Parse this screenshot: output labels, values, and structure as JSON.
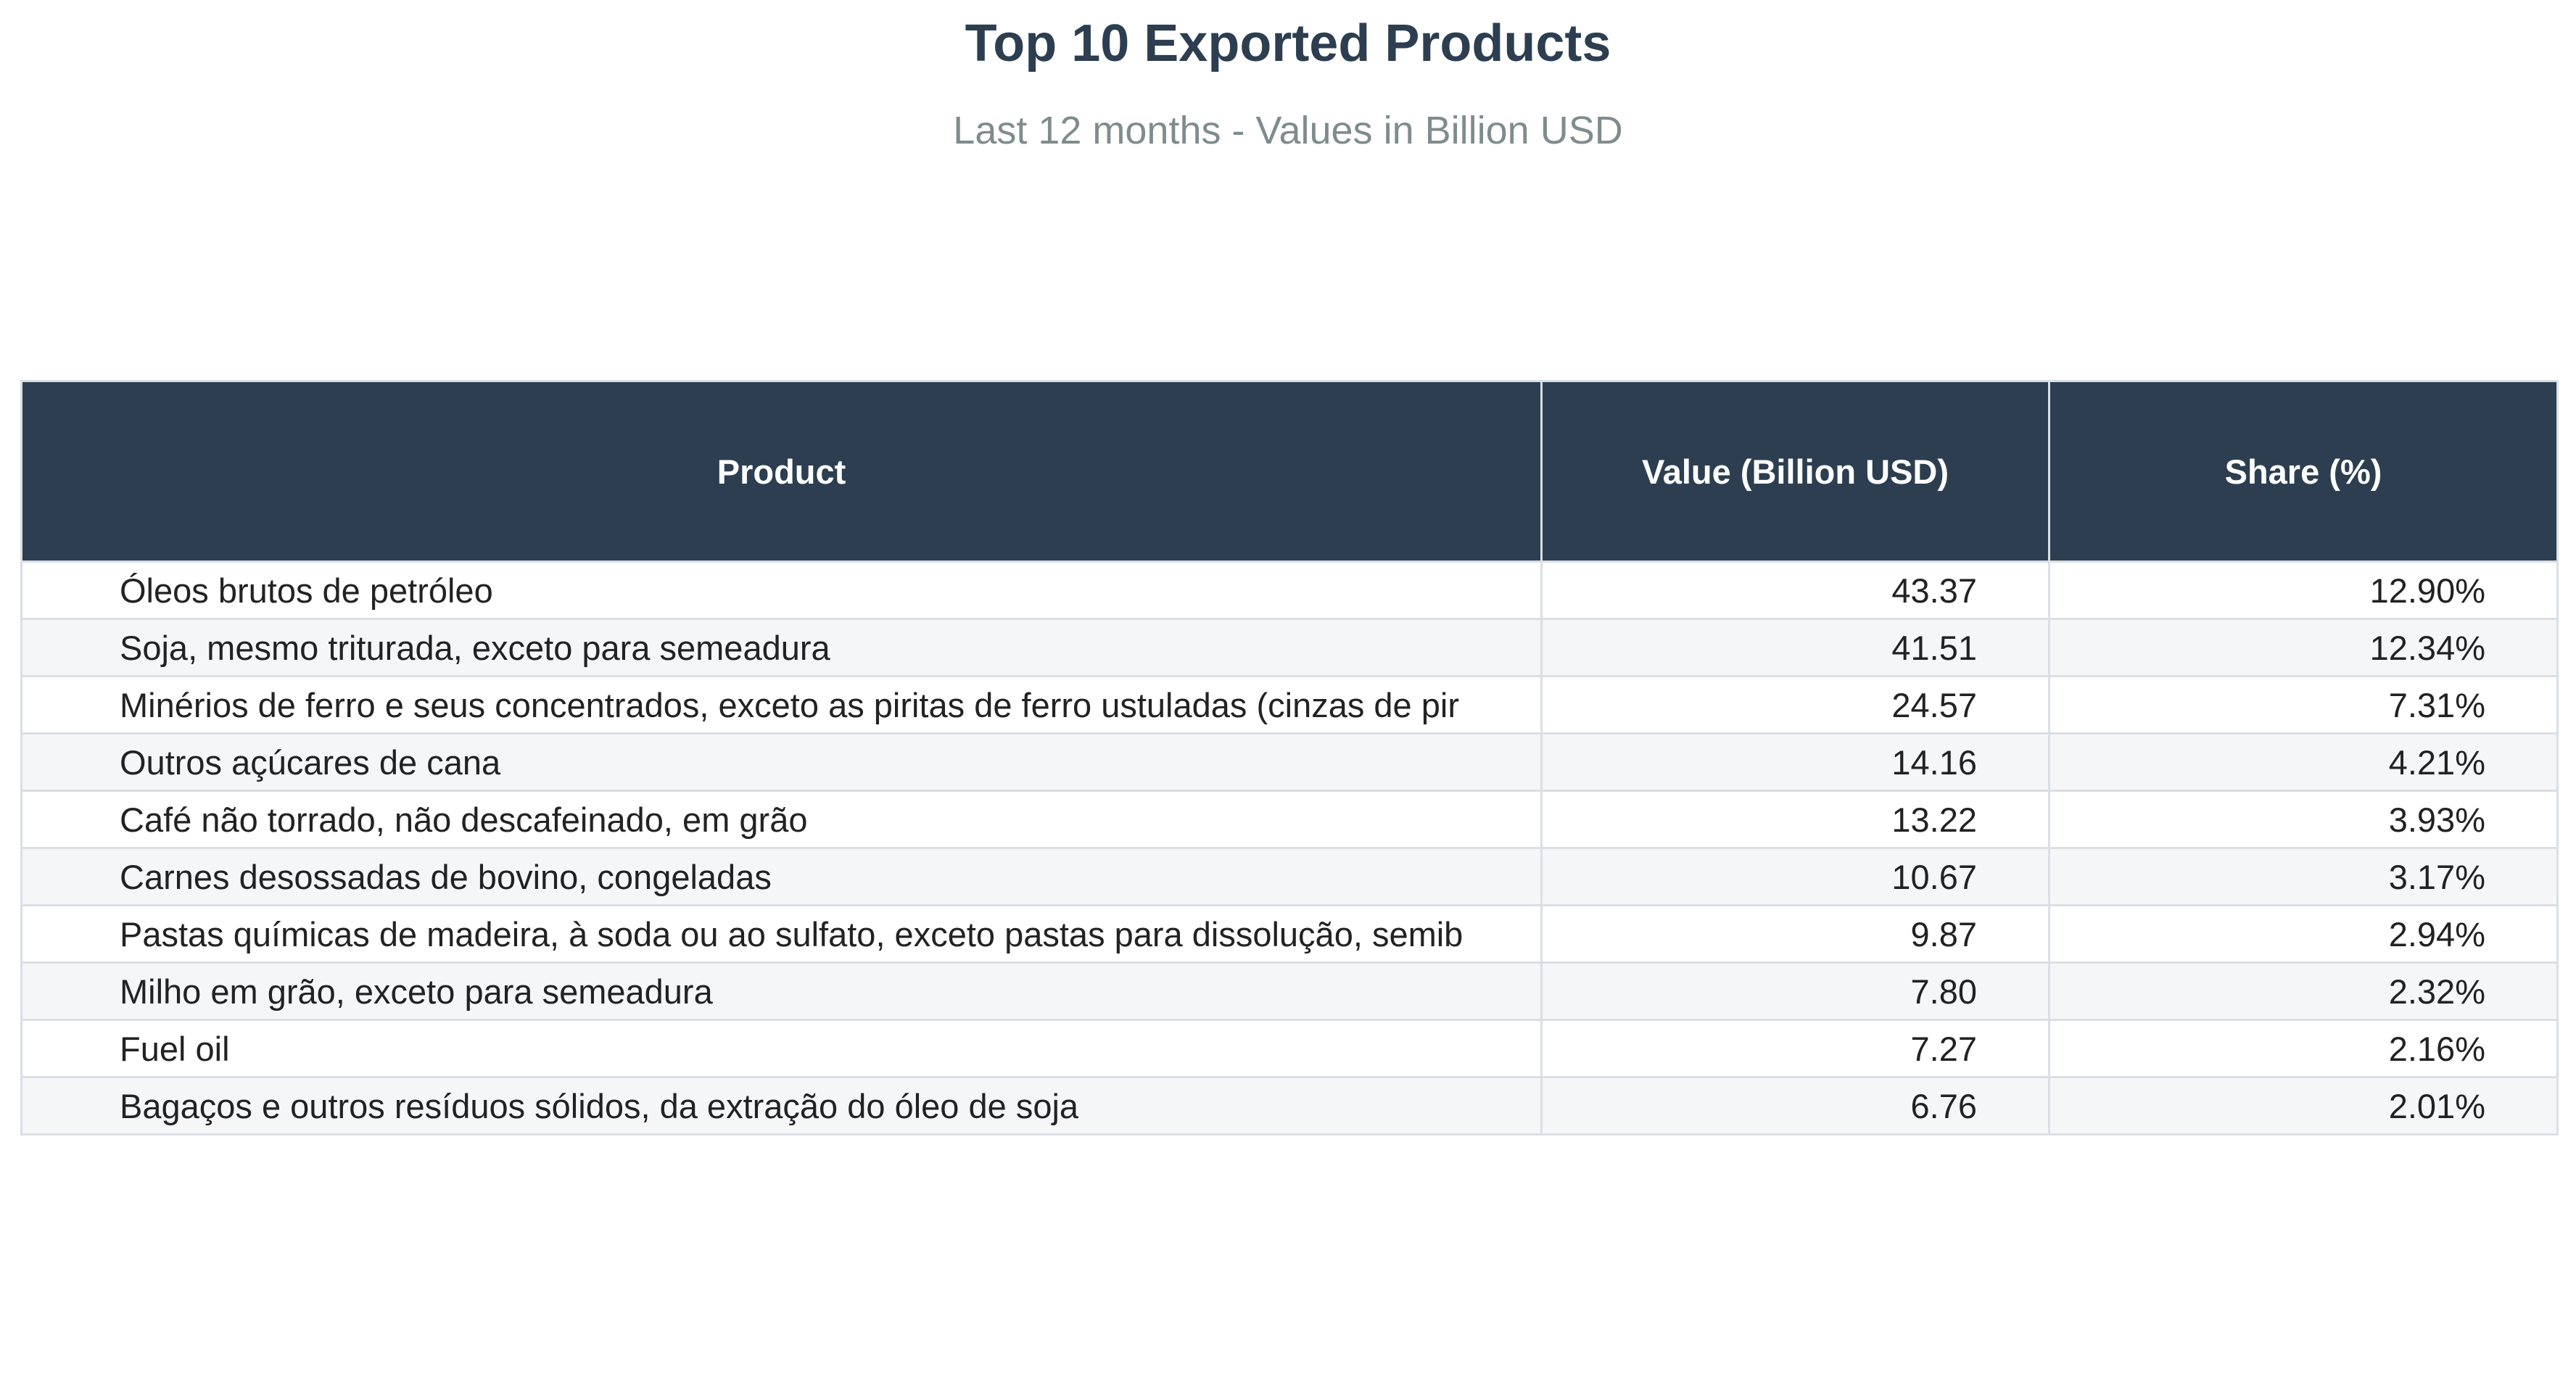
{
  "chart_data": {
    "type": "table",
    "title": "Top 10 Exported Products",
    "subtitle": "Last 12 months - Values in Billion USD",
    "columns": [
      "Product",
      "Value (Billion USD)",
      "Share (%)"
    ],
    "rows": [
      {
        "product": "Óleos brutos de petróleo",
        "value": "43.37",
        "share": "12.90%"
      },
      {
        "product": "Soja, mesmo triturada, exceto para semeadura",
        "value": "41.51",
        "share": "12.34%"
      },
      {
        "product": "Minérios de ferro e seus concentrados, exceto as piritas de ferro ustuladas (cinzas de pir",
        "value": "24.57",
        "share": "7.31%"
      },
      {
        "product": "Outros açúcares de cana",
        "value": "14.16",
        "share": "4.21%"
      },
      {
        "product": "Café não torrado, não descafeinado, em grão",
        "value": "13.22",
        "share": "3.93%"
      },
      {
        "product": "Carnes desossadas de bovino, congeladas",
        "value": "10.67",
        "share": "3.17%"
      },
      {
        "product": "Pastas químicas de madeira, à soda ou ao sulfato, exceto pastas para dissolução, semib",
        "value": "9.87",
        "share": "2.94%"
      },
      {
        "product": "Milho em grão, exceto para semeadura",
        "value": "7.80",
        "share": "2.32%"
      },
      {
        "product": "Fuel oil",
        "value": "7.27",
        "share": "2.16%"
      },
      {
        "product": "Bagaços e outros resíduos sólidos, da extração do óleo de soja",
        "value": "6.76",
        "share": "2.01%"
      }
    ]
  },
  "colors": {
    "header_bg": "#2c3e50",
    "header_text": "#ffffff",
    "title_text": "#2c3e50",
    "subtitle_text": "#7f8c8d",
    "row_alt_bg": "#f5f6f8",
    "grid": "#dadfe4"
  }
}
